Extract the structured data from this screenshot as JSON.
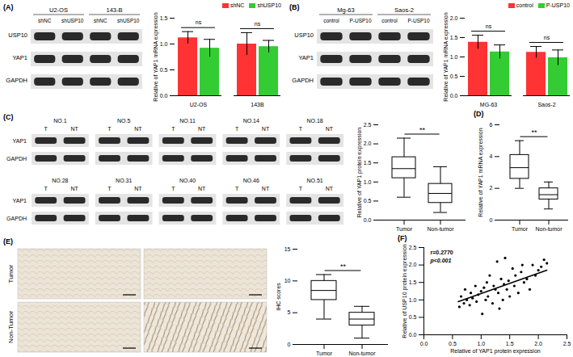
{
  "chart_data": [
    {
      "type": "bar",
      "categories": [
        "U2-OS",
        "143B"
      ],
      "series": [
        {
          "name": "shNC",
          "color": "#ff3333",
          "values": [
            1.12,
            1.0
          ],
          "errors": [
            0.12,
            0.22
          ]
        },
        {
          "name": "shUSP10",
          "color": "#33cc33",
          "values": [
            0.92,
            0.95
          ],
          "errors": [
            0.17,
            0.12
          ]
        }
      ],
      "y_label": "Relative of YAP1 mRNA expression",
      "ylim": [
        0,
        1.5
      ],
      "yticks": [
        {
          "value": 0,
          "label": "0.0"
        },
        0.5,
        {
          "value": 1,
          "label": "1.0"
        },
        1.5
      ],
      "annotations": [
        {
          "category": "U2-OS",
          "text": "ns"
        },
        {
          "category": "143B",
          "text": "ns"
        }
      ],
      "legend": "top-right"
    },
    {
      "type": "bar",
      "categories": [
        "MG-63",
        "Saos-2"
      ],
      "series": [
        {
          "name": "control",
          "color": "#ff3333",
          "values": [
            1.38,
            1.12
          ],
          "errors": [
            0.18,
            0.15
          ]
        },
        {
          "name": "P-USP10",
          "color": "#33cc33",
          "values": [
            1.13,
            0.98
          ],
          "errors": [
            0.18,
            0.2
          ]
        }
      ],
      "y_label": "Relative of YAP1 mRNA expression",
      "ylim": [
        0,
        2
      ],
      "yticks": [
        {
          "value": 0,
          "label": "0.0"
        },
        0.5,
        {
          "value": 1,
          "label": "1.0"
        },
        1.5,
        {
          "value": 2,
          "label": "2.0"
        }
      ],
      "annotations": [
        {
          "category": "MG-63",
          "text": "ns"
        },
        {
          "category": "Saos-2",
          "text": "ns"
        }
      ],
      "legend": "top-right"
    },
    {
      "type": "box",
      "categories": [
        "Tumor",
        "Non-tumor"
      ],
      "boxes": [
        {
          "min": 0.6,
          "q1": 1.1,
          "median": 1.35,
          "q3": 1.65,
          "max": 2.15
        },
        {
          "min": 0.2,
          "q1": 0.45,
          "median": 0.7,
          "q3": 0.95,
          "max": 1.4
        }
      ],
      "y_label": "Relative of YAP1 protein expression",
      "ylim": [
        0,
        2.5
      ],
      "yticks": [
        {
          "value": 0,
          "label": "0.0"
        },
        0.5,
        {
          "value": 1,
          "label": "1.0"
        },
        1.5,
        {
          "value": 2,
          "label": "2.0"
        },
        2.5
      ],
      "annotation": "**"
    },
    {
      "type": "box",
      "title": "(D)",
      "categories": [
        "Tumor",
        "Non-tumor"
      ],
      "boxes": [
        {
          "min": 2.0,
          "q1": 2.6,
          "median": 3.3,
          "q3": 4.1,
          "max": 5.0
        },
        {
          "min": 0.7,
          "q1": 1.3,
          "median": 1.6,
          "q3": 2.0,
          "max": 2.4
        }
      ],
      "y_label": "Relative of YAP1 mRNA expression",
      "ylim": [
        0,
        6
      ],
      "yticks": [
        0,
        2,
        4,
        6
      ],
      "annotation": "**"
    },
    {
      "type": "box",
      "categories": [
        "Tumor",
        "Non-tumor"
      ],
      "boxes": [
        {
          "min": 4,
          "q1": 7,
          "median": 8.5,
          "q3": 10,
          "max": 11
        },
        {
          "min": 1,
          "q1": 3,
          "median": 4,
          "q3": 5,
          "max": 6
        }
      ],
      "y_label": "IHC scores",
      "ylim": [
        0,
        15
      ],
      "yticks": [
        0,
        5,
        10,
        15
      ],
      "annotation": "**"
    },
    {
      "type": "scatter",
      "title": "(F)",
      "x": [
        0.62,
        0.65,
        0.7,
        0.72,
        0.75,
        0.8,
        0.82,
        0.85,
        0.9,
        0.92,
        0.95,
        1.0,
        1.02,
        1.05,
        1.08,
        1.1,
        1.12,
        1.15,
        1.2,
        1.22,
        1.25,
        1.28,
        1.3,
        1.32,
        1.35,
        1.38,
        1.4,
        1.42,
        1.45,
        1.48,
        1.5,
        1.55,
        1.58,
        1.6,
        1.65,
        1.7,
        1.72,
        1.75,
        1.8,
        1.85,
        1.9,
        1.95,
        2.0,
        2.05,
        2.1,
        2.15
      ],
      "y": [
        0.8,
        1.1,
        0.9,
        1.3,
        1.0,
        0.85,
        1.2,
        1.05,
        1.4,
        0.95,
        1.15,
        1.25,
        0.6,
        1.35,
        1.0,
        1.5,
        1.1,
        1.7,
        0.9,
        1.4,
        1.3,
        2.1,
        1.2,
        0.75,
        1.6,
        1.0,
        1.45,
        2.2,
        1.3,
        1.55,
        1.1,
        1.9,
        1.4,
        1.7,
        1.2,
        1.8,
        2.0,
        1.5,
        1.6,
        1.3,
        2.0,
        1.7,
        1.85,
        1.95,
        2.15,
        2.05
      ],
      "fit": {
        "x": [
          0.6,
          2.15
        ],
        "y": [
          0.95,
          1.85
        ]
      },
      "x_label": "Relative of YAP1 protein expression",
      "y_label": "Relative of USP10 protein expression",
      "xlim": [
        0,
        2.5
      ],
      "xticks": [
        {
          "value": 0,
          "label": "0.0"
        },
        0.5,
        {
          "value": 1,
          "label": "1.0"
        },
        1.5,
        {
          "value": 2,
          "label": "2.0"
        },
        2.5
      ],
      "ylim": [
        0,
        2.5
      ],
      "yticks": [
        {
          "value": 0,
          "label": "0.0"
        },
        0.5,
        {
          "value": 1,
          "label": "1.0"
        },
        1.5,
        {
          "value": 2,
          "label": "2.0"
        },
        2.5
      ],
      "annotations": [
        {
          "text": "r=0.2770"
        },
        {
          "text": "p<0.001"
        }
      ],
      "color": "#000000"
    }
  ],
  "blots": [
    {
      "panel": "(A)",
      "groups": [
        "U2-OS",
        "143-B"
      ],
      "lanes": [
        "shNC",
        "shUSP10"
      ],
      "rows": [
        "USP10",
        "YAP1",
        "GAPDH"
      ]
    },
    {
      "panel": "(B)",
      "groups": [
        "Mg-63",
        "Saos-2"
      ],
      "lanes": [
        "control",
        "P-USP10"
      ],
      "rows": [
        "USP10",
        "YAP1",
        "GAPDH"
      ]
    },
    {
      "panel": "(C)",
      "samples": [
        "NO.1",
        "NO.5",
        "NO.11",
        "NO.14",
        "NO.18",
        "NO.28",
        "NO.31",
        "NO.40",
        "NO.46",
        "NO.51"
      ],
      "lanes": [
        "T",
        "NT"
      ],
      "rows": [
        "YAP1",
        "GAPDH"
      ]
    }
  ],
  "ihc": {
    "panel": "(E)",
    "rows": [
      "Tumor",
      "Non-Tumor"
    ]
  }
}
